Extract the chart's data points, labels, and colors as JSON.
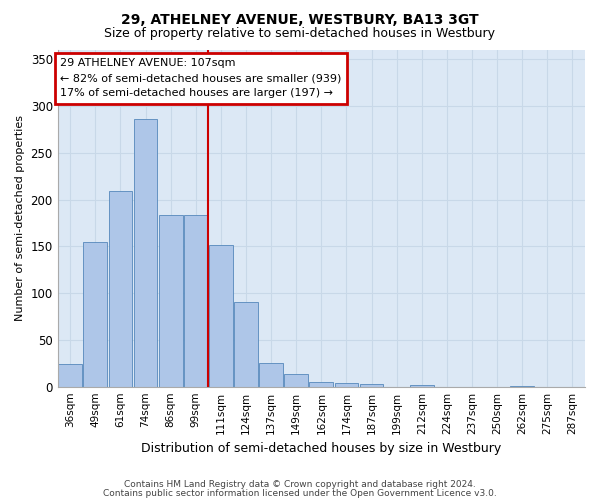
{
  "title": "29, ATHELNEY AVENUE, WESTBURY, BA13 3GT",
  "subtitle": "Size of property relative to semi-detached houses in Westbury",
  "xlabel": "Distribution of semi-detached houses by size in Westbury",
  "ylabel": "Number of semi-detached properties",
  "categories": [
    "36sqm",
    "49sqm",
    "61sqm",
    "74sqm",
    "86sqm",
    "99sqm",
    "111sqm",
    "124sqm",
    "137sqm",
    "149sqm",
    "162sqm",
    "174sqm",
    "187sqm",
    "199sqm",
    "212sqm",
    "224sqm",
    "237sqm",
    "250sqm",
    "262sqm",
    "275sqm",
    "287sqm"
  ],
  "values": [
    24,
    155,
    209,
    286,
    184,
    184,
    152,
    91,
    25,
    14,
    5,
    4,
    3,
    0,
    2,
    0,
    0,
    0,
    1,
    0,
    0
  ],
  "bar_color": "#aec6e8",
  "bar_edge_color": "#5588bb",
  "grid_color": "#c8d8e8",
  "background_color": "#dce8f5",
  "vline_x_index": 6,
  "vline_color": "#cc0000",
  "annotation_line1": "29 ATHELNEY AVENUE: 107sqm",
  "annotation_line2": "← 82% of semi-detached houses are smaller (939)",
  "annotation_line3": "17% of semi-detached houses are larger (197) →",
  "annotation_box_color": "#cc0000",
  "ylim": [
    0,
    360
  ],
  "yticks": [
    0,
    50,
    100,
    150,
    200,
    250,
    300,
    350
  ],
  "title_fontsize": 10,
  "subtitle_fontsize": 9,
  "footnote1": "Contains HM Land Registry data © Crown copyright and database right 2024.",
  "footnote2": "Contains public sector information licensed under the Open Government Licence v3.0."
}
